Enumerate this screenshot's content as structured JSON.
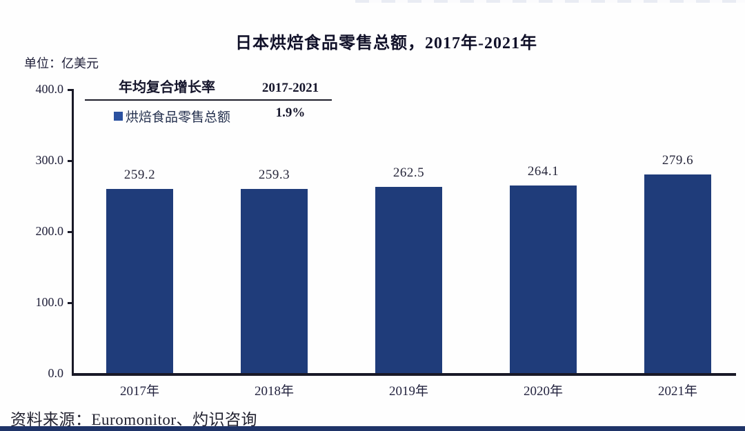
{
  "header": {
    "title": "日本烘焙食品零售总额，2017年-2021年",
    "unit_label": "单位：亿美元"
  },
  "cagr_table": {
    "header_left": "年均复合增长率",
    "header_right": "2017-2021",
    "series_label": "烘焙食品零售总额",
    "cagr_value": "1.9%",
    "swatch_color": "#2b51a0"
  },
  "chart_data": {
    "type": "bar",
    "title": "日本烘焙食品零售总额，2017年-2021年",
    "unit": "亿美元",
    "categories": [
      "2017年",
      "2018年",
      "2019年",
      "2020年",
      "2021年"
    ],
    "values": [
      259.2,
      259.3,
      262.5,
      264.1,
      279.6
    ],
    "series": [
      {
        "name": "烘焙食品零售总额",
        "values": [
          259.2,
          259.3,
          262.5,
          264.1,
          279.6
        ]
      }
    ],
    "value_label_decimals": 1,
    "xlabel": "",
    "ylabel": "亿美元",
    "ylim": [
      0,
      400
    ],
    "ytick_labels": [
      "400.0",
      "300.0",
      "200.0",
      "100.0",
      "0.0"
    ],
    "grid": false,
    "legend_position": "top-left",
    "bar_color": "#1f3c7a",
    "axis_color": "#191927",
    "annotations": {
      "cagr_header": "年均复合增长率",
      "cagr_period": "2017-2021",
      "cagr_value": "1.9%"
    }
  },
  "footer": {
    "source": "资料来源：Euromonitor、灼识咨询"
  }
}
